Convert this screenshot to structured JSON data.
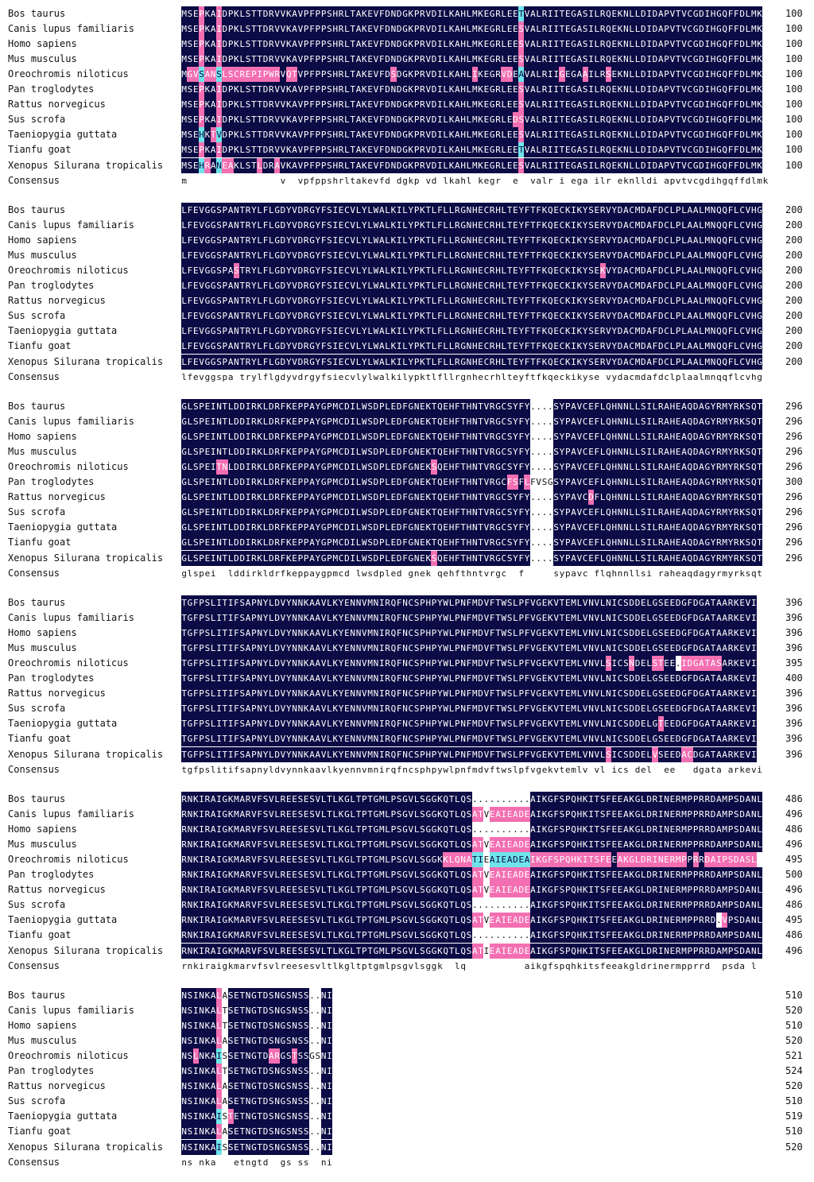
{
  "colors": {
    "identical_bg": "#0b0b45",
    "identical_fg": "#ffffff",
    "high_bg": "#f36fb2",
    "high_fg": "#ffffff",
    "mid_bg": "#6fe5ea",
    "mid_fg": "#0b0b45",
    "none_bg": "#ffffff",
    "none_fg": "#111111"
  },
  "species": [
    "Bos taurus",
    "Canis lupus familiaris",
    "Homo sapiens",
    "Mus musculus",
    "Oreochromis niloticus",
    "Pan troglodytes",
    "Rattus norvegicus",
    "Sus scrofa",
    "Taeniopygia guttata",
    "Tianfu goat",
    "Xenopus Silurana tropicalis"
  ],
  "consensus_label": "Consensus",
  "blocks": [
    {
      "seqs": [
        "MSEPKAIDPKLSTTDRVVKAVPFPPSHRLTAKEVFDNDGKPRVDILKAHLMKEGRLEETVALRIITEGASILRQEKNLLDIDAPVTVCGDIHGQFFDLMK",
        "MSEPKAIDPKLSTTDRVVKAVPFPPSHRLTAKEVFDNDGKPRVDILKAHLMKEGRLEESVALRIITEGASILRQEKNLLDIDAPVTVCGDIHGQFFDLMK",
        "MSEPKAIDPKLSTTDRVVKAVPFPPSHRLTAKEVFDNDGKPRVDILKAHLMKEGRLEESVALRIITEGASILRQEKNLLDIDAPVTVCGDIHGQFFDLMK",
        "MSEPKAIDPKLSTTDRVVKAVPFPPSHRLTAKEVFDNDGKPRVDILKAHLMKEGRLEESVALRIITEGASILRQEKNLLDIDAPVTVCGDIHGQFFDLMK",
        "MGVSANSLSCREPIPWRVQTVPFPPSHRLTAKEVFDSDGKPRVDILKAHLIKEGRVDEAVALRIIGEGAAILRSEKNLLDIDAPVTVCGDIHGQFFDLMK",
        "MSEPKAIDPKLSTTDRVVKAVPFPPSHRLTAKEVFDNDGKPRVDILKAHLMKEGRLEESVALRIITEGASILRQEKNLLDIDAPVTVCGDIHGQFFDLMK",
        "MSEPKAIDPKLSTTDRVVKAVPFPPSHRLTAKEVFDNDGKPRVDILKAHLMKEGRLEESVALRIITEGASILRQEKNLLDIDAPVTVCGDIHGQFFDLMK",
        "MSEPKAIDPKLSTTDRVVKAVPFPPSHRLTAKEVFDNDGKPRVDILKAHLMKEGRLEDSVALRIITEGASILRQEKNLLDIDAPVTVCGDIHGQFFDLMK",
        "MSEHKTVDPKLSTTDRVVKAVPFPPSHRLTAKEVFDNDGKPRVDILKAHLMKEGRLEESVALRIITEGASILRQEKNLLDIDAPVTVCGDIHGQFFDLMK",
        "MSEPKAIDPKLSTTDRVVKAVPFPPSHRLTAKEVFDNDGKPRVDILKAHLMKEGRLEETVALRIITEGASILRQEKNLLDIDAPVTVCGDIHGQFFDLMK",
        "MSEHRANEAKLSTLDRAVKAVPFPPSHRLTAKEVFDNDGKPRVDILKAHLMKEGRLEESVALRIITEGASILRQEKNLLDIDAPVTVCGDIHGQFFDLMK"
      ],
      "ends": [
        "100",
        "100",
        "100",
        "100",
        "100",
        "100",
        "100",
        "100",
        "100",
        "100",
        "100"
      ],
      "consensus": "m                v  vpfppshrltakevfd dgkp vd lkahl kegr  e  valr i ega ilr eknlldi apvtvcgdihgqffdlmk"
    },
    {
      "seqs": [
        "LFEVGGSPANTRYLFLGDYVDRGYFSIECVLYLWALKILYPKTLFLLRGNHECRHLTEYFTFKQECKIKYSERVYDACMDAFDCLPLAALMNQQFLCVHG",
        "LFEVGGSPANTRYLFLGDYVDRGYFSIECVLYLWALKILYPKTLFLLRGNHECRHLTEYFTFKQECKIKYSERVYDACMDAFDCLPLAALMNQQFLCVHG",
        "LFEVGGSPANTRYLFLGDYVDRGYFSIECVLYLWALKILYPKTLFLLRGNHECRHLTEYFTFKQECKIKYSERVYDACMDAFDCLPLAALMNQQFLCVHG",
        "LFEVGGSPANTRYLFLGDYVDRGYFSIECVLYLWALKILYPKTLFLLRGNHECRHLTEYFTFKQECKIKYSERVYDACMDAFDCLPLAALMNQQFLCVHG",
        "LFEVGGSPASTRYLFLGDYVDRGYFSIECVLYLWALKILYPKTLFLLRGNHECRHLTEYFTFKQECKIKYSEKVYDACMDAFDCLPLAALMNQQFLCVHG",
        "LFEVGGSPANTRYLFLGDYVDRGYFSIECVLYLWALKILYPKTLFLLRGNHECRHLTEYFTFKQECKIKYSERVYDACMDAFDCLPLAALMNQQFLCVHG",
        "LFEVGGSPANTRYLFLGDYVDRGYFSIECVLYLWALKILYPKTLFLLRGNHECRHLTEYFTFKQECKIKYSERVYDACMDAFDCLPLAALMNQQFLCVHG",
        "LFEVGGSPANTRYLFLGDYVDRGYFSIECVLYLWALKILYPKTLFLLRGNHECRHLTEYFTFKQECKIKYSERVYDACMDAFDCLPLAALMNQQFLCVHG",
        "LFEVGGSPANTRYLFLGDYVDRGYFSIECVLYLWALKILYPKTLFLLRGNHECRHLTEYFTFKQECKIKYSERVYDACMDAFDCLPLAALMNQQFLCVHG",
        "LFEVGGSPANTRYLFLGDYVDRGYFSIECVLYLWALKILYPKTLFLLRGNHECRHLTEYFTFKQECKIKYSERVYDACMDAFDCLPLAALMNQQFLCVHG",
        "LFEVGGSPANTRYLFLGDYVDRGYFSIECVLYLWALKILYPKTLFLLRGNHECRHLTEYFTFKQECKIKYSERVYDACMDAFDCLPLAALMNQQFLCVHG"
      ],
      "ends": [
        "200",
        "200",
        "200",
        "200",
        "200",
        "200",
        "200",
        "200",
        "200",
        "200",
        "200"
      ],
      "consensus": "lfevggspa trylflgdyvdrgyfsiecvlylwalkilypktlfllrgnhecrhlteyftfkqeckikyse vydacmdafdclplaalmnqqflcvhg"
    },
    {
      "seqs": [
        "GLSPEINTLDDIRKLDRFKEPPAYGPMCDILWSDPLEDFGNEKTQEHFTHNTVRGCSYFY....SYPAVCEFLQHNNLLSILRAHEAQDAGYRMYRKSQT",
        "GLSPEINTLDDIRKLDRFKEPPAYGPMCDILWSDPLEDFGNEKTQEHFTHNTVRGCSYFY....SYPAVCEFLQHNNLLSILRAHEAQDAGYRMYRKSQT",
        "GLSPEINTLDDIRKLDRFKEPPAYGPMCDILWSDPLEDFGNEKTQEHFTHNTVRGCSYFY....SYPAVCEFLQHNNLLSILRAHEAQDAGYRMYRKSQT",
        "GLSPEINTLDDIRKLDRFKEPPAYGPMCDILWSDPLEDFGNEKTQEHFTHNTVRGCSYFY....SYPAVCEFLQHNNLLSILRAHEAQDAGYRMYRKSQT",
        "GLSPEITNLDDIRKLDRFKEPPAYGPMCDILWSDPLEDFGNEKSQEHFTHNTVRGCSYFY....SYPAVCEFLQHNNLLSILRAHEAQDAGYRMYRKSQT",
        "GLSPEINTLDDIRKLDRFKEPPAYGPMCDILWSDPLEDFGNEKTQEHFTHNTVRGCFSFLFVSGSYPAVCEFLQHNNLLSILRAHEAQDAGYRMYRKSQT",
        "GLSPEINTLDDIRKLDRFKEPPAYGPMCDILWSDPLEDFGNEKTQEHFTHNTVRGCSYFY....SYPAVCDFLQHNNLLSILRAHEAQDAGYRMYRKSQT",
        "GLSPEINTLDDIRKLDRFKEPPAYGPMCDILWSDPLEDFGNEKTQEHFTHNTVRGCSYFY....SYPAVCEFLQHNNLLSILRAHEAQDAGYRMYRKSQT",
        "GLSPEINTLDDIRKLDRFKEPPAYGPMCDILWSDPLEDFGNEKTQEHFTHNTVRGCSYFY....SYPAVCEFLQHNNLLSILRAHEAQDAGYRMYRKSQT",
        "GLSPEINTLDDIRKLDRFKEPPAYGPMCDILWSDPLEDFGNEKTQEHFTHNTVRGCSYFY....SYPAVCEFLQHNNLLSILRAHEAQDAGYRMYRKSQT",
        "GLSPEINTLDDIRKLDRFKEPPAYGPMCDILWSDPLEDFGNEKSQEHFTHNTVRGCSYFY....SYPAVCEFLQHNNLLSILRAHEAQDAGYRMYRKSQT"
      ],
      "ends": [
        "296",
        "296",
        "296",
        "296",
        "296",
        "300",
        "296",
        "296",
        "296",
        "296",
        "296"
      ],
      "consensus": "glspei  lddirkldrfkeppaygpmcd lwsdpled gnek qehfthntvrgc  f     sypavc flqhnnllsi raheaqdagyrmyrksqt"
    },
    {
      "seqs": [
        "TGFPSLITIFSAPNYLDVYNNKAAVLKYENNVMNIRQFNCSPHPYWLPNFMDVFTWSLPFVGEKVTEMLVNVLNICSDDELGSEEDGFDGATAARKEVI",
        "TGFPSLITIFSAPNYLDVYNNKAAVLKYENNVMNIRQFNCSPHPYWLPNFMDVFTWSLPFVGEKVTEMLVNVLNICSDDELGSEEDGFDGATAARKEVI",
        "TGFPSLITIFSAPNYLDVYNNKAAVLKYENNVMNIRQFNCSPHPYWLPNFMDVFTWSLPFVGEKVTEMLVNVLNICSDDELGSEEDGFDGATAARKEVI",
        "TGFPSLITIFSAPNYLDVYNNKAAVLKYENNVMNIRQFNCSPHPYWLPNFMDVFTWSLPFVGEKVTEMLVNVLNICSDDELGSEEDGFDGATAARKEVI",
        "TGFPSLITIFSAPNYLDVYNNKAAVLKYENNVMNIRQFNCSPHPYWLPNFMDVFTWSLPFVGEKVTEMLVNVLSICSNDELSTEE.IDGATASARKEVI",
        "TGFPSLITIFSAPNYLDVYNNKAAVLKYENNVMNIRQFNCSPHPYWLPNFMDVFTWSLPFVGEKVTEMLVNVLNICSDDELGSEEDGFDGATAARKEVI",
        "TGFPSLITIFSAPNYLDVYNNKAAVLKYENNVMNIRQFNCSPHPYWLPNFMDVFTWSLPFVGEKVTEMLVNVLNICSDDELGSEEDGFDGATAARKEVI",
        "TGFPSLITIFSAPNYLDVYNNKAAVLKYENNVMNIRQFNCSPHPYWLPNFMDVFTWSLPFVGEKVTEMLVNVLNICSDDELGSEEDGFDGATAARKEVI",
        "TGFPSLITIFSAPNYLDVYNNKAAVLKYENNVMNIRQFNCSPHPYWLPNFMDVFTWSLPFVGEKVTEMLVNVLNICSDDELGTEEDGFDGATAARKEVI",
        "TGFPSLITIFSAPNYLDVYNNKAAVLKYENNVMNIRQFNCSPHPYWLPNFMDVFTWSLPFVGEKVTEMLVNVLNICSDDELGSEEDGFDGATAARKEVI",
        "TGFPSLITIFSAPNYLDVYNNKAAVLKYENNVMNIRQFNCSPHPYWLPNFMDVFTWSLPFVGEKVTEMLVNVLSICSDDELVSEEDACDGATAARKEVI"
      ],
      "ends": [
        "396",
        "396",
        "396",
        "396",
        "395",
        "400",
        "396",
        "396",
        "396",
        "396",
        "396"
      ],
      "consensus": "tgfpslitifsapnyldvynnkaavlkyennvmnirqfncsphpywlpnfmdvftwslpfvgekvtemlv vl ics del  ee   dgata arkevi"
    },
    {
      "seqs": [
        "RNKIRAIGKMARVFSVLREESESVLTLKGLTPTGMLPSGVLSGGKQTLQS..........AIKGFSPQHKITSFEEAKGLDRINERMPPRRDAMPSDANL",
        "RNKIRAIGKMARVFSVLREESESVLTLKGLTPTGMLPSGVLSGGKQTLQSATVEAIEADEAIKGFSPQHKITSFEEAKGLDRINERMPPRRDAMPSDANL",
        "RNKIRAIGKMARVFSVLREESESVLTLKGLTPTGMLPSGVLSGGKQTLQS..........AIKGFSPQHKITSFEEAKGLDRINERMPPRRDAMPSDANL",
        "RNKIRAIGKMARVFSVLREESESVLTLKGLTPTGMLPSGVLSGGKQTLQSATVEAIEADEAIKGFSPQHKITSFEEAKGLDRINERMPPRRDAMPSDANL",
        "RNKIRAIGKMARVFSVLREESESVLTLKGLTPTGMLPSGVLSGGKKLQNATIEAIEADEAIKGFSPQHKITSFEEAKGLDRINERMPPRRDAIPSDASL",
        "RNKIRAIGKMARVFSVLREESESVLTLKGLTPTGMLPSGVLSGGKQTLQSATVEAIEADEAIKGFSPQHKITSFEEAKGLDRINERMPPRRDAMPSDANL",
        "RNKIRAIGKMARVFSVLREESESVLTLKGLTPTGMLPSGVLSGGKQTLQSATVEAIEADEAIKGFSPQHKITSFEEAKGLDRINERMPPRRDAMPSDANL",
        "RNKIRAIGKMARVFSVLREESESVLTLKGLTPTGMLPSGVLSGGKQTLQS..........AIKGFSPQHKITSFEEAKGLDRINERMPPRRDAMPSDANL",
        "RNKIRAIGKMARVFSVLREESESVLTLKGLTPTGMLPSGVLSGGKQTLQSATVEAIEADEAIKGFSPQHKITSFEEAKGLDRINERMPPRRD.VPSDANL",
        "RNKIRAIGKMARVFSVLREESESVLTLKGLTPTGMLPSGVLSGGKQTLQS..........AIKGFSPQHKITSFEEAKGLDRINERMPPRRDAMPSDANL",
        "RNKIRAIGKMARVFSVLREESESVLTLKGLTPTGMLPSGVLSGGKQTLQSATIEAIEADEAIKGFSPQHKITSFEEAKGLDRINERMPPRRDAMPSDANL"
      ],
      "ends": [
        "486",
        "496",
        "486",
        "496",
        "495",
        "500",
        "496",
        "486",
        "495",
        "486",
        "496"
      ],
      "consensus": "rnkiraigkmarvfsvlreesesvltlkgltptgmlpsgvlsggk  lq          aikgfspqhkitsfeeakgldrinermpprrd  psda l"
    },
    {
      "seqs": [
        "NSINKALASETNGTDSNGSNSS..NI",
        "NSINKALTSETNGTDSNGSNSS..NI",
        "NSINKALTSETNGTDSNGSNSS..NI",
        "NSINKALASETNGTDSNGSNSS..NI",
        "NSLNKAISSETNGTDARGSTSSGSNI",
        "NSINKALTSETNGTDSNGSNSS..NI",
        "NSINKALASETNGTDSNGSNSS..NI",
        "NSINKALASETNGTDSNGSNSS..NI",
        "NSINKAISTETNGTDSNGSNSS..NI",
        "NSINKALASETNGTDSNGSNSS..NI",
        "NSINKAISSETNGTDSNGSNSS..NI"
      ],
      "ends": [
        "510",
        "520",
        "510",
        "520",
        "521",
        "524",
        "520",
        "510",
        "519",
        "510",
        "520"
      ],
      "consensus": "ns nka   etngtd  gs ss  ni"
    }
  ]
}
